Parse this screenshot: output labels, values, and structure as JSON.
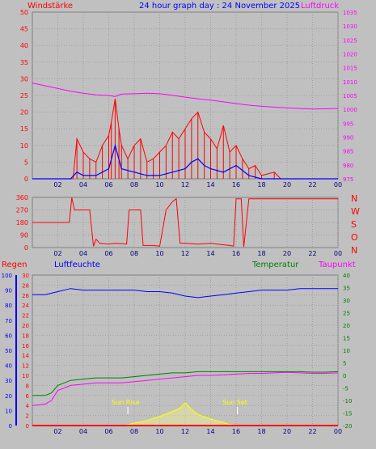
{
  "header": {
    "left": "Windstärke",
    "title": "24 hour graph day : 24 November 2025",
    "right": "Luftdruck"
  },
  "wind_direction_labels": [
    "N",
    "W",
    "S",
    "O",
    "N"
  ],
  "middle_header": {
    "regen": "Regen",
    "luftfeuchte": "Luftfeuchte",
    "temperatur": "Temperatur",
    "taupunkt": "Taupunkt"
  },
  "sun": {
    "rise": "Sun Rise",
    "set": "Sun Set",
    "rise_hour": 7.5,
    "set_hour": 16.1
  },
  "colors": {
    "wind": "#ff0000",
    "gust_avg": "#0000ff",
    "wind_green": "#008000",
    "pressure": "#ff00ff",
    "direction": "#ff0000",
    "humidity": "#0000ff",
    "temperature": "#008000",
    "dewpoint": "#ff00ff",
    "solar": "#ffff00",
    "rain": "#ff0000",
    "rain_axis": "#0000ff",
    "left_axis": "#ff0000",
    "right_axis_temp": "#008000",
    "title": "#0000ff",
    "background": "#c0c0c0"
  },
  "chart_data": [
    {
      "type": "line",
      "title": "24 hour graph day : 24 November 2025",
      "x_ticks": [
        "02",
        "04",
        "06",
        "08",
        "10",
        "12",
        "14",
        "16",
        "18",
        "20",
        "22",
        "00"
      ],
      "xlim": [
        0,
        24
      ],
      "left_axis": {
        "label": "Windstärke",
        "ticks": [
          0,
          5,
          10,
          15,
          20,
          25,
          30,
          35,
          40,
          45,
          50
        ],
        "ylim": [
          0,
          50
        ]
      },
      "right_axis": {
        "label": "Luftdruck",
        "ticks": [
          975,
          980,
          985,
          990,
          995,
          1000,
          1005,
          1010,
          1015,
          1020,
          1025,
          1030,
          1035
        ],
        "ylim": [
          975,
          1035
        ]
      },
      "series": [
        {
          "name": "Windstärke",
          "axis": "left",
          "x": [
            0,
            2,
            3.2,
            3.5,
            4,
            4.5,
            5,
            5.5,
            6,
            6.2,
            6.5,
            6.8,
            7,
            7.5,
            8,
            8.5,
            9,
            9.5,
            10,
            10.5,
            11,
            11.5,
            12,
            12.5,
            13,
            13.5,
            14,
            14.5,
            15,
            15.5,
            16,
            16.5,
            17,
            17.5,
            18,
            19,
            19.5,
            24
          ],
          "y": [
            0,
            0,
            0,
            12,
            8,
            6,
            5,
            10,
            13,
            17,
            24,
            15,
            10,
            6,
            10,
            12,
            5,
            6,
            8,
            10,
            14,
            12,
            15,
            18,
            20,
            14,
            12,
            9,
            16,
            8,
            10,
            6,
            3,
            4,
            1,
            2,
            0,
            0
          ]
        },
        {
          "axis": "left",
          "x": [
            0,
            3,
            3.5,
            4,
            5,
            6,
            6.5,
            7,
            8,
            9,
            10,
            11,
            12,
            12.5,
            13,
            13.5,
            14,
            15,
            16,
            17,
            18,
            24
          ],
          "y": [
            0,
            0,
            2,
            1,
            1,
            3,
            10,
            3,
            2,
            1,
            1,
            2,
            3,
            5,
            6,
            4,
            3,
            2,
            4,
            1,
            0,
            0
          ]
        },
        {
          "name": "Luftdruck",
          "axis": "right",
          "x": [
            0,
            1,
            2,
            3,
            4,
            5,
            6,
            6.5,
            7,
            8,
            9,
            10,
            11,
            12,
            13,
            14,
            15,
            16,
            17,
            18,
            19,
            20,
            21,
            22,
            23,
            24
          ],
          "y": [
            1009.5,
            1008.5,
            1007.5,
            1006.5,
            1005.8,
            1005.2,
            1005.0,
            1004.6,
            1005.5,
            1005.6,
            1005.8,
            1005.6,
            1005.1,
            1004.4,
            1003.8,
            1003.3,
            1002.7,
            1002.1,
            1001.5,
            1001.1,
            1000.8,
            1000.5,
            1000.3,
            1000.1,
            1000.2,
            1000.3
          ]
        }
      ]
    },
    {
      "type": "line",
      "x_ticks": [
        "02",
        "04",
        "06",
        "08",
        "10",
        "12",
        "14",
        "16",
        "18",
        "20",
        "22",
        "00"
      ],
      "xlim": [
        0,
        24
      ],
      "left_axis": {
        "ticks": [
          0,
          90,
          180,
          270,
          360
        ],
        "ylim": [
          0,
          360
        ]
      },
      "right_axis": {
        "ticks": [
          "N",
          "W",
          "S",
          "O",
          "N"
        ]
      },
      "series": [
        {
          "axis": "left",
          "x": [
            0,
            2.9,
            3.1,
            3.3,
            3.7,
            4.5,
            4.8,
            5,
            5.3,
            6,
            6.5,
            7,
            7.4,
            7.6,
            8.5,
            8.7,
            9.5,
            10,
            10.5,
            11,
            11.3,
            11.6,
            12,
            13,
            14,
            15,
            15.5,
            15.8,
            16,
            16.4,
            16.6,
            17,
            17.5,
            18,
            24
          ],
          "y": [
            180,
            180,
            360,
            270,
            270,
            270,
            10,
            60,
            30,
            25,
            30,
            28,
            25,
            270,
            270,
            15,
            15,
            10,
            270,
            330,
            350,
            30,
            30,
            25,
            30,
            20,
            15,
            10,
            350,
            350,
            5,
            350,
            350,
            350,
            350
          ]
        }
      ]
    },
    {
      "type": "line",
      "x_ticks": [
        "02",
        "04",
        "06",
        "08",
        "10",
        "12",
        "14",
        "16",
        "18",
        "20",
        "22",
        "00"
      ],
      "xlim": [
        0,
        24
      ],
      "left_axis": {
        "label": "Regen",
        "ticks": [
          0,
          2,
          4,
          6,
          8,
          10,
          12,
          14,
          16,
          18,
          20,
          22,
          24,
          26,
          28,
          30
        ],
        "ylim": [
          0,
          30
        ]
      },
      "humidity_axis": {
        "label": "Luftfeuchte",
        "ticks": [
          0,
          10,
          20,
          30,
          40,
          50,
          60,
          70,
          80,
          90,
          100
        ],
        "ylim": [
          0,
          100
        ]
      },
      "right_axis": {
        "label": "Temperatur",
        "ticks": [
          -20,
          -15,
          -10,
          -5,
          0,
          5,
          10,
          15,
          20,
          25,
          30,
          35,
          40
        ],
        "ylim": [
          -20,
          40
        ]
      },
      "series": [
        {
          "name": "Luftfeuchte",
          "axis": "humidity",
          "x": [
            0,
            1,
            2,
            3,
            4,
            5,
            6,
            7,
            8,
            9,
            10,
            11,
            12,
            13,
            14,
            15,
            16,
            17,
            18,
            19,
            20,
            21,
            22,
            23,
            24
          ],
          "y": [
            87,
            87,
            89,
            91,
            90,
            90,
            90,
            90,
            90,
            89,
            89,
            88,
            86,
            85,
            86,
            87,
            88,
            89,
            90,
            90,
            90,
            91,
            91,
            91,
            91
          ]
        },
        {
          "name": "Temperatur",
          "axis": "right",
          "x": [
            0,
            1,
            1.5,
            2,
            3,
            4,
            5,
            6,
            7,
            8,
            9,
            10,
            11,
            12,
            13,
            14,
            15,
            16,
            17,
            18,
            19,
            20,
            21,
            22,
            23,
            24
          ],
          "y": [
            -8,
            -8,
            -7,
            -4,
            -2,
            -1.5,
            -1,
            -1,
            -1,
            -0.5,
            0,
            0.5,
            1,
            1,
            1.5,
            1.5,
            1.5,
            1.5,
            1.5,
            1.5,
            1.5,
            1.5,
            1.5,
            1.3,
            1.3,
            1.5
          ]
        },
        {
          "name": "Taupunkt",
          "axis": "right",
          "x": [
            0,
            1,
            1.5,
            2,
            3,
            4,
            5,
            6,
            7,
            8,
            9,
            10,
            11,
            12,
            13,
            14,
            15,
            16,
            17,
            18,
            19,
            20,
            21,
            22,
            23,
            24
          ],
          "y": [
            -12,
            -11.5,
            -10,
            -6,
            -4,
            -3.5,
            -3,
            -3,
            -3,
            -2.5,
            -2,
            -1.5,
            -1,
            -0.5,
            0,
            0,
            0.2,
            0.5,
            0.8,
            0.8,
            1,
            1.2,
            1,
            0.8,
            0.8,
            1
          ]
        },
        {
          "name": "Regen",
          "axis": "left",
          "x": [
            0,
            24
          ],
          "y": [
            0,
            0
          ]
        },
        {
          "axis": "left",
          "x": [
            7.3,
            8,
            9,
            10,
            11,
            11.5,
            12,
            12.5,
            13,
            14,
            15,
            15.5,
            16
          ],
          "y": [
            0,
            0.5,
            1,
            1.8,
            2.8,
            3.3,
            4.5,
            3.2,
            2.2,
            1.3,
            0.6,
            0.2,
            0
          ]
        }
      ]
    }
  ]
}
